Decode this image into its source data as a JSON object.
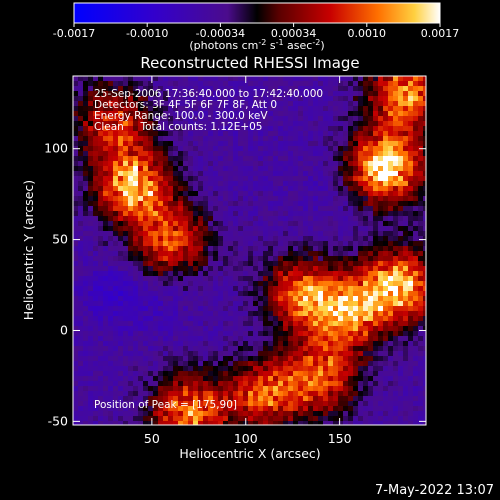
{
  "chart_data": {
    "type": "heatmap",
    "title": "Reconstructed RHESSI Image",
    "xlabel": "Heliocentric X (arcsec)",
    "ylabel": "Heliocentric Y (arcsec)",
    "xlim": [
      8,
      196
    ],
    "ylim": [
      -52,
      140
    ],
    "x_ticks": [
      50,
      100,
      150
    ],
    "y_ticks": [
      -50,
      0,
      50,
      100
    ],
    "colorbar": {
      "ticks": [
        "-0.0017",
        "-0.0010",
        "-0.00034",
        "0.00034",
        "0.0010",
        "0.0017"
      ],
      "label_main": "(photons cm",
      "label_sup1": "-2",
      "label_mid": " s",
      "label_sup2": "-1",
      "label_mid2": " asec",
      "label_sup3": "-2",
      "label_end": ")",
      "range": [
        -0.0017,
        0.0017
      ]
    },
    "annotations": [
      "25-Sep-2006 17:36:40.000 to 17:42:40.000",
      "Detectors: 3F 4F 5F 6F 7F 8F, Att 0",
      "Energy Range: 100.0 - 300.0 keV",
      "Clean     Total counts: 1.12E+05"
    ],
    "peak_label": "Position of Peak = [175,90]",
    "grid": false,
    "peaks": [
      {
        "x": 175,
        "y": 90,
        "value": 0.0017
      },
      {
        "x": 40,
        "y": 80,
        "value": 0.0014
      },
      {
        "x": 182,
        "y": 25,
        "value": 0.0014
      },
      {
        "x": 70,
        "y": -45,
        "value": 0.0012
      },
      {
        "x": 130,
        "y": 20,
        "value": 0.001
      },
      {
        "x": 155,
        "y": 10,
        "value": 0.0011
      },
      {
        "x": 60,
        "y": 50,
        "value": 0.0009
      },
      {
        "x": 140,
        "y": -25,
        "value": 0.001
      },
      {
        "x": 110,
        "y": -35,
        "value": 0.0009
      },
      {
        "x": 30,
        "y": 115,
        "value": 0.0008
      },
      {
        "x": 185,
        "y": 130,
        "value": 0.0012
      }
    ],
    "troughs": [
      {
        "x": 30,
        "y": 20,
        "value": -0.0008
      },
      {
        "x": 55,
        "y": 15,
        "value": -0.0006
      },
      {
        "x": 90,
        "y": 110,
        "value": -0.0005
      },
      {
        "x": 145,
        "y": 80,
        "value": -0.0006
      },
      {
        "x": 100,
        "y": 40,
        "value": -0.0004
      }
    ]
  },
  "footer": {
    "timestamp": "7-May-2022 13:07"
  }
}
